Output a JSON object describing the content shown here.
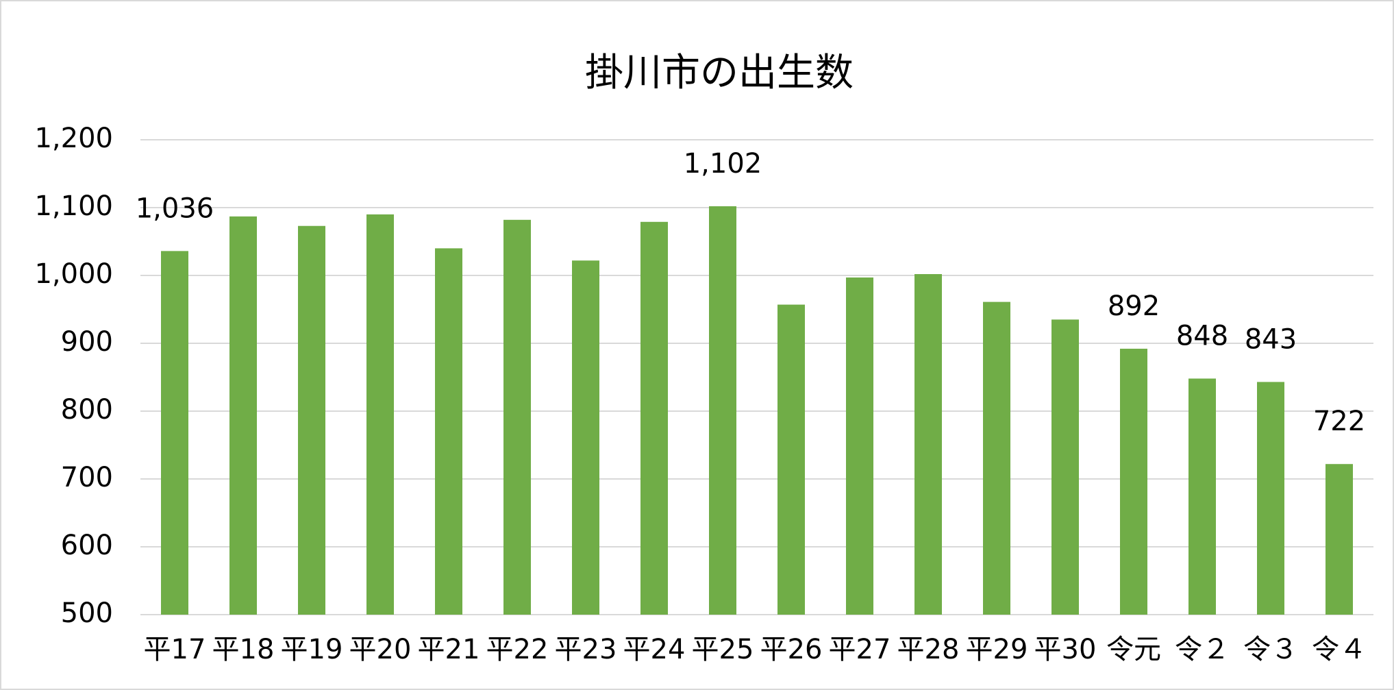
{
  "chart_data": {
    "type": "bar",
    "title": "掛川市の出生数",
    "categories": [
      "平17",
      "平18",
      "平19",
      "平20",
      "平21",
      "平22",
      "平23",
      "平24",
      "平25",
      "平26",
      "平27",
      "平28",
      "平29",
      "平30",
      "令元",
      "令２",
      "令３",
      "令４"
    ],
    "values": [
      1036,
      1087,
      1073,
      1090,
      1040,
      1082,
      1022,
      1079,
      1102,
      957,
      997,
      1002,
      961,
      935,
      892,
      848,
      843,
      722
    ],
    "value_labels": [
      "1,036",
      null,
      null,
      null,
      null,
      null,
      null,
      null,
      "1,102",
      null,
      null,
      null,
      null,
      null,
      "892",
      "848",
      "843",
      "722"
    ],
    "color": "#70ad47",
    "ylim": [
      500,
      1200
    ],
    "yticks": [
      500,
      600,
      700,
      800,
      900,
      {
        "value": 1000,
        "label": "1,000"
      },
      {
        "value": 1100,
        "label": "1,100"
      },
      {
        "value": 1200,
        "label": "1,200"
      }
    ],
    "grid": true
  }
}
